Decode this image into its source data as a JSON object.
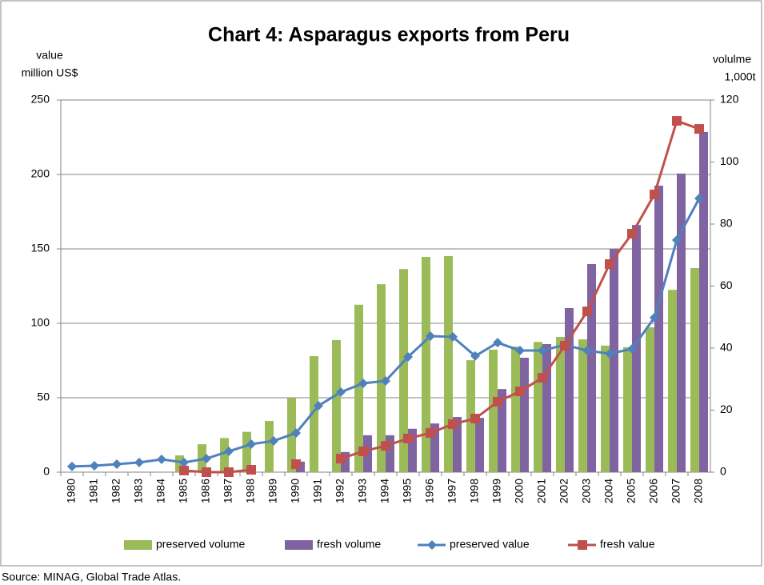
{
  "chart_data": {
    "type": "bar",
    "title": "Chart 4: Asparagus exports from Peru",
    "y_label": [
      "value",
      "million US$"
    ],
    "y2_label": [
      "volulme",
      "1,000t"
    ],
    "source": "Source: MINAG, Global Trade Atlas.",
    "categories": [
      "1980",
      "1981",
      "1982",
      "1983",
      "1984",
      "1985",
      "1986",
      "1987",
      "1988",
      "1989",
      "1990",
      "1991",
      "1992",
      "1993",
      "1994",
      "1995",
      "1996",
      "1997",
      "1998",
      "1999",
      "2000",
      "2001",
      "2002",
      "2003",
      "2004",
      "2005",
      "2006",
      "2007",
      "2008"
    ],
    "ylim": [
      0,
      250
    ],
    "yticks": [
      0,
      50,
      100,
      150,
      200,
      250
    ],
    "y2lim": [
      0,
      120
    ],
    "y2ticks": [
      0,
      20,
      40,
      60,
      80,
      100,
      120
    ],
    "grid": true,
    "legend": "bottom",
    "series": [
      {
        "name": "preserved volume",
        "type": "bar",
        "axis": "y2",
        "color": "#9bbb59",
        "values": [
          null,
          null,
          null,
          null,
          null,
          5.4,
          9,
          11,
          13,
          16.5,
          24,
          37.4,
          42.6,
          54,
          60.6,
          65.5,
          69.4,
          69.7,
          36.1,
          39.5,
          40.5,
          42,
          43.6,
          42.8,
          40.8,
          40.3,
          46.7,
          58.8,
          65.8
        ]
      },
      {
        "name": "fresh volume",
        "type": "bar",
        "axis": "y2",
        "color": "#8064a2",
        "values": [
          null,
          null,
          null,
          null,
          null,
          null,
          null,
          null,
          null,
          null,
          3.4,
          null,
          6.5,
          11.9,
          11.9,
          14,
          15.7,
          17.8,
          17.5,
          26.8,
          36.9,
          41.3,
          52.9,
          67.1,
          72,
          79.7,
          92.4,
          96.3,
          109.7
        ]
      },
      {
        "name": "preserved value",
        "type": "line",
        "marker": "diamond",
        "color": "#4f81bd",
        "values": [
          3.8,
          4.3,
          5.4,
          6.5,
          8.6,
          6.5,
          9.1,
          14,
          18.8,
          21,
          26.3,
          44.6,
          53.8,
          59.7,
          61.3,
          77.4,
          91.4,
          90.9,
          78,
          87,
          81.7,
          81.7,
          85.5,
          81.7,
          79.6,
          82.8,
          103.8,
          155.9,
          183.9
        ]
      },
      {
        "name": "fresh value",
        "type": "line",
        "marker": "square",
        "color": "#c0504d",
        "values": [
          null,
          null,
          null,
          null,
          null,
          1.1,
          0,
          0,
          1.6,
          null,
          5.4,
          null,
          9.1,
          14,
          17.7,
          22.6,
          26.3,
          32.3,
          36,
          47.3,
          54.3,
          63.4,
          84.9,
          108,
          139.8,
          160.2,
          186.6,
          236,
          230.6
        ]
      }
    ]
  }
}
